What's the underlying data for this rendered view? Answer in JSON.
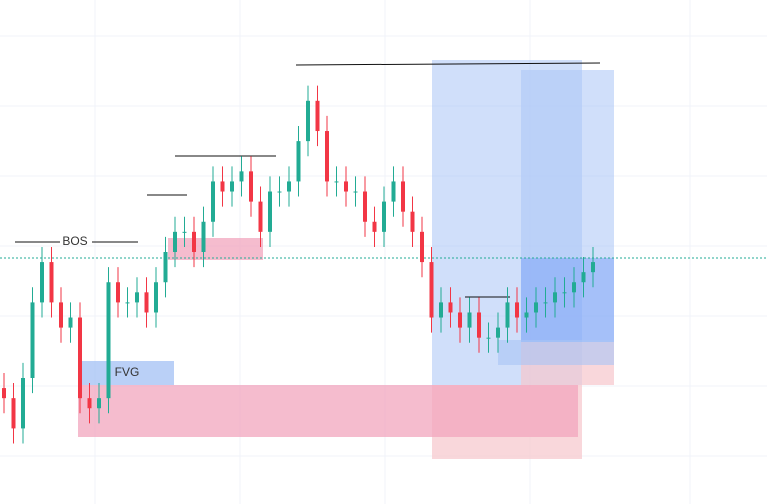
{
  "chart_data": {
    "type": "candlestick",
    "annotations": [
      "BOS",
      "FVG"
    ],
    "ylim": [
      0,
      100
    ],
    "up_color": "#22ab94",
    "down_color": "#f23645",
    "open": [
      23,
      21,
      15,
      25,
      40,
      48,
      40,
      35,
      37,
      21,
      19,
      21,
      44,
      40,
      40,
      42,
      38,
      44,
      50,
      54,
      54,
      50,
      56,
      64,
      62,
      64,
      66,
      60,
      54,
      62,
      62,
      64,
      72,
      80,
      74,
      64,
      64,
      62,
      62,
      56,
      54,
      60,
      64,
      58,
      54,
      48,
      37,
      40,
      38,
      35,
      38,
      33,
      33,
      35,
      40,
      37,
      38,
      40,
      40,
      42,
      42,
      44,
      46
    ],
    "high": [
      26,
      24,
      28,
      43,
      51,
      51,
      43,
      40,
      40,
      24,
      24,
      47,
      47,
      43,
      45,
      45,
      47,
      53,
      57,
      57,
      57,
      59,
      67,
      67,
      67,
      69,
      69,
      63,
      65,
      65,
      67,
      75,
      83,
      83,
      77,
      67,
      67,
      65,
      65,
      59,
      63,
      67,
      67,
      61,
      57,
      51,
      43,
      43,
      41,
      41,
      41,
      36,
      38,
      43,
      43,
      41,
      43,
      43,
      45,
      45,
      47,
      49,
      51
    ],
    "low": [
      18,
      12,
      12,
      22,
      37,
      37,
      32,
      32,
      18,
      16,
      16,
      18,
      37,
      37,
      37,
      35,
      35,
      41,
      47,
      51,
      47,
      47,
      53,
      59,
      59,
      61,
      57,
      51,
      51,
      59,
      59,
      61,
      69,
      71,
      61,
      61,
      59,
      59,
      53,
      51,
      51,
      57,
      55,
      51,
      45,
      34,
      34,
      35,
      32,
      32,
      30,
      30,
      30,
      32,
      34,
      34,
      35,
      37,
      37,
      39,
      39,
      41,
      43
    ],
    "close": [
      21,
      15,
      25,
      40,
      48,
      40,
      35,
      37,
      21,
      19,
      21,
      44,
      40,
      40,
      42,
      38,
      44,
      50,
      54,
      54,
      50,
      56,
      64,
      62,
      64,
      66,
      60,
      54,
      62,
      62,
      64,
      72,
      80,
      74,
      64,
      64,
      62,
      62,
      56,
      54,
      60,
      64,
      58,
      54,
      48,
      37,
      40,
      38,
      35,
      38,
      33,
      33,
      35,
      40,
      37,
      38,
      40,
      40,
      42,
      42,
      44,
      46,
      48
    ]
  }
}
